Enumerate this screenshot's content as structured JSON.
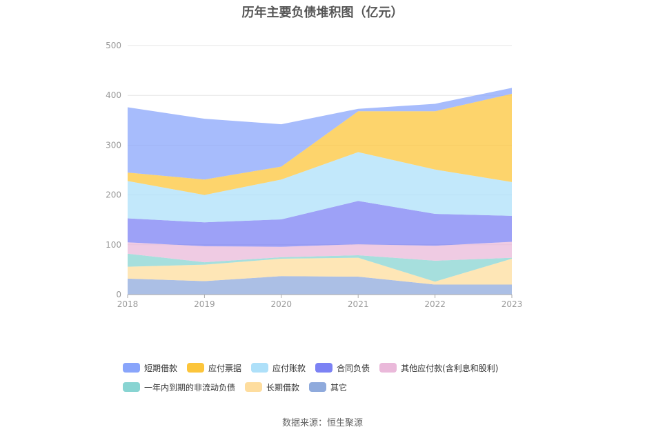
{
  "chart_data": {
    "type": "area",
    "stacked": true,
    "title": "历年主要负债堆积图（亿元）",
    "x": [
      "2018",
      "2019",
      "2020",
      "2021",
      "2022",
      "2023"
    ],
    "ylim": [
      0,
      500
    ],
    "yticks": [
      0,
      100,
      200,
      300,
      400,
      500
    ],
    "grid": true,
    "legend_position": "bottom",
    "series": [
      {
        "name": "其它",
        "color": "#8faadc",
        "values": [
          32,
          27,
          37,
          36,
          20,
          20
        ]
      },
      {
        "name": "长期借款",
        "color": "#fedd9e",
        "values": [
          24,
          33,
          35,
          38,
          6,
          52
        ]
      },
      {
        "name": "一年内到期的非流动负债",
        "color": "#88d4d2",
        "values": [
          26,
          5,
          3,
          5,
          42,
          2
        ]
      },
      {
        "name": "其他应付款(含利息和股利)",
        "color": "#eab9da",
        "values": [
          23,
          32,
          21,
          22,
          30,
          32
        ]
      },
      {
        "name": "合同负债",
        "color": "#7c82f4",
        "values": [
          48,
          48,
          55,
          87,
          64,
          52
        ]
      },
      {
        "name": "应付账款",
        "color": "#aee0f9",
        "values": [
          75,
          55,
          80,
          98,
          89,
          68
        ]
      },
      {
        "name": "应付票据",
        "color": "#fcc53b",
        "values": [
          17,
          31,
          26,
          82,
          117,
          177
        ]
      },
      {
        "name": "短期借款",
        "color": "#89a5fb",
        "values": [
          131,
          122,
          85,
          5,
          15,
          12
        ]
      }
    ]
  },
  "source": "数据来源：恒生聚源"
}
